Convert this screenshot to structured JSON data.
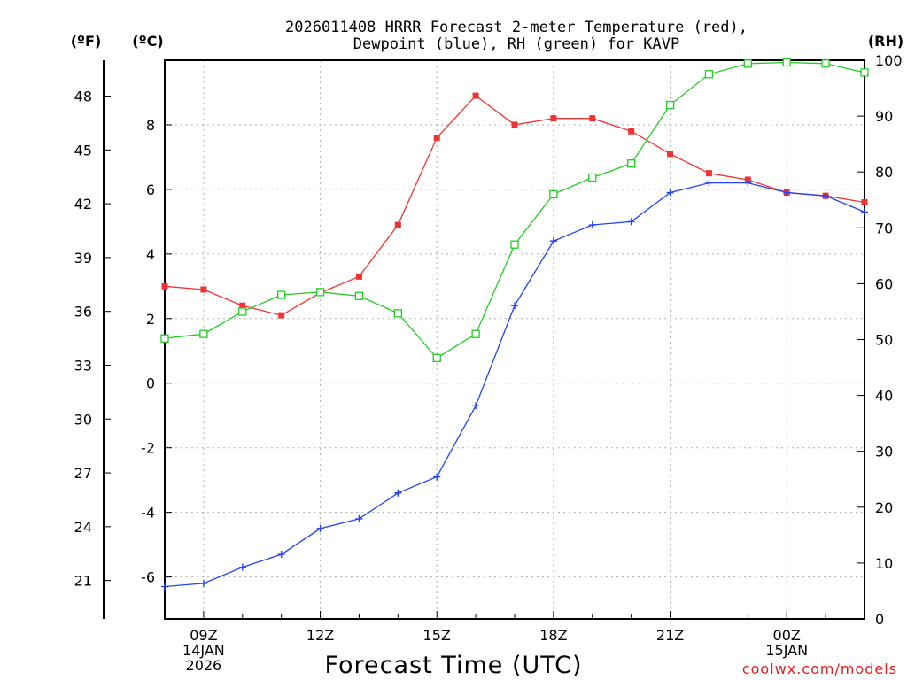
{
  "chart_data": {
    "type": "line",
    "title_line1": "2026011408 HRRR Forecast 2-meter Temperature (red),",
    "title_line2": "Dewpoint (blue), RH (green) for KAVP",
    "units": {
      "f": "(ºF)",
      "c": "(ºC)",
      "rh": "(RH)"
    },
    "xlabel": "Forecast Time (UTC)",
    "credit": "coolwx.com/models",
    "x_hours": [
      8,
      9,
      10,
      11,
      12,
      13,
      14,
      15,
      16,
      17,
      18,
      19,
      20,
      21,
      22,
      23,
      24,
      25,
      26
    ],
    "xlim": [
      8,
      26
    ],
    "x_ticks": [
      {
        "hour": 9,
        "lines": [
          "09Z",
          "14JAN",
          "2026"
        ]
      },
      {
        "hour": 12,
        "lines": [
          "12Z"
        ]
      },
      {
        "hour": 15,
        "lines": [
          "15Z"
        ]
      },
      {
        "hour": 18,
        "lines": [
          "18Z"
        ]
      },
      {
        "hour": 21,
        "lines": [
          "21Z"
        ]
      },
      {
        "hour": 24,
        "lines": [
          "00Z",
          "15JAN"
        ]
      }
    ],
    "c_axis": {
      "range": [
        -7.3,
        10.0
      ],
      "ticks": [
        -6,
        -4,
        -2,
        0,
        2,
        4,
        6,
        8
      ],
      "labels": [
        "-6",
        "-4",
        "-2",
        "0",
        "2",
        "4",
        "6",
        "8"
      ]
    },
    "f_axis": {
      "ticks": [
        21,
        24,
        27,
        30,
        33,
        36,
        39,
        42,
        45,
        48
      ],
      "labels": [
        "21",
        "24",
        "27",
        "30",
        "33",
        "36",
        "39",
        "42",
        "45",
        "48"
      ]
    },
    "rh_axis": {
      "range": [
        0,
        100
      ],
      "ticks": [
        0,
        10,
        20,
        30,
        40,
        50,
        60,
        70,
        80,
        90,
        100
      ],
      "labels": [
        "0",
        "10",
        "20",
        "30",
        "40",
        "50",
        "60",
        "70",
        "80",
        "90",
        "100"
      ]
    },
    "series": [
      {
        "name": "Temperature",
        "axis": "c",
        "color": "#ee3333",
        "marker": "filled-square",
        "values": [
          3.0,
          2.9,
          2.4,
          2.1,
          2.8,
          3.3,
          4.9,
          7.6,
          8.9,
          8.0,
          8.2,
          8.2,
          7.8,
          7.1,
          6.5,
          6.3,
          5.9,
          5.8,
          5.6
        ]
      },
      {
        "name": "Dewpoint",
        "axis": "c",
        "color": "#2244ee",
        "marker": "plus",
        "values": [
          -6.3,
          -6.2,
          -5.7,
          -5.3,
          -4.5,
          -4.2,
          -3.4,
          -2.9,
          -0.7,
          2.4,
          4.4,
          4.9,
          5.0,
          5.9,
          6.2,
          6.2,
          5.9,
          5.8,
          5.3
        ]
      },
      {
        "name": "RH",
        "axis": "rh",
        "color": "#22cc22",
        "marker": "open-square",
        "values": [
          50.2,
          51.0,
          55.0,
          58.0,
          58.5,
          57.8,
          54.7,
          46.7,
          51.0,
          67.0,
          76.0,
          79.0,
          81.5,
          92.0,
          97.5,
          99.4,
          99.6,
          99.4,
          97.8
        ]
      }
    ]
  }
}
